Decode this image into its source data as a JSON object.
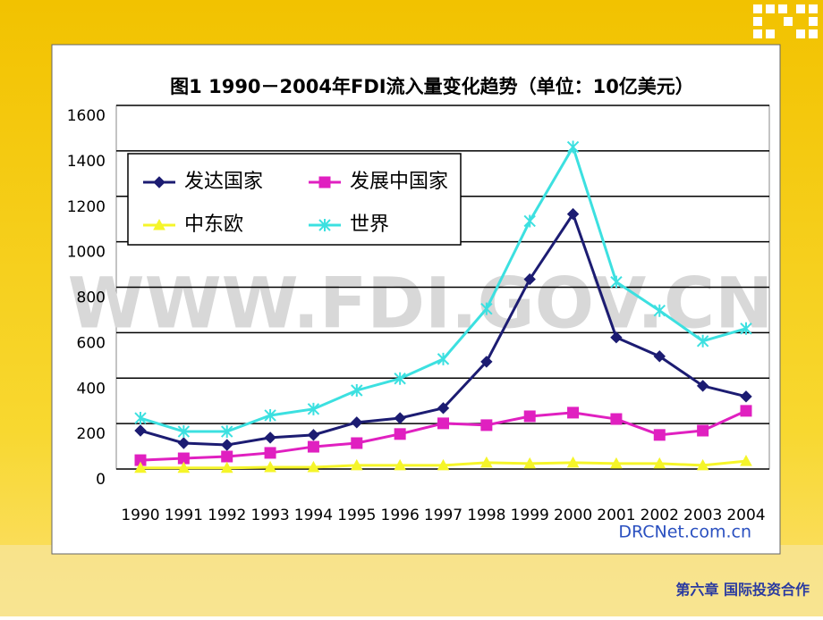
{
  "chart_data": {
    "type": "line",
    "title": "图1 1990－2004年FDI流入量变化趋势（单位：10亿美元）",
    "categories": [
      "1990",
      "1991",
      "1992",
      "1993",
      "1994",
      "1995",
      "1996",
      "1997",
      "1998",
      "1999",
      "2000",
      "2001",
      "2002",
      "2003",
      "2004"
    ],
    "series": [
      {
        "name": "发达国家",
        "color": "#1c1c72",
        "marker": "diamond",
        "values": [
          169,
          114,
          106,
          138,
          150,
          205,
          224,
          268,
          472,
          835,
          1122,
          579,
          496,
          366,
          319
        ]
      },
      {
        "name": "发展中国家",
        "color": "#e020c0",
        "marker": "square",
        "values": [
          39,
          47,
          55,
          71,
          98,
          114,
          154,
          201,
          193,
          232,
          248,
          220,
          150,
          169,
          256
        ]
      },
      {
        "name": "中东欧",
        "color": "#f5f52a",
        "marker": "triangle",
        "values": [
          5,
          5,
          5,
          8,
          8,
          16,
          16,
          16,
          28,
          24,
          28,
          24,
          24,
          16,
          35
        ]
      },
      {
        "name": "世界",
        "color": "#3ce0e0",
        "marker": "asterisk",
        "values": [
          224,
          165,
          165,
          236,
          264,
          346,
          398,
          484,
          705,
          1091,
          1417,
          823,
          697,
          563,
          618
        ]
      }
    ],
    "ylim": [
      0,
      1600
    ],
    "yticks": [
      0,
      200,
      400,
      600,
      800,
      1000,
      1200,
      1400,
      1600
    ],
    "grid": true,
    "legend": "top-left",
    "watermark": "WWW.FDI.GOV.CN",
    "source": "DRCNet.com.cn"
  },
  "footer": "第六章 国际投资合作"
}
